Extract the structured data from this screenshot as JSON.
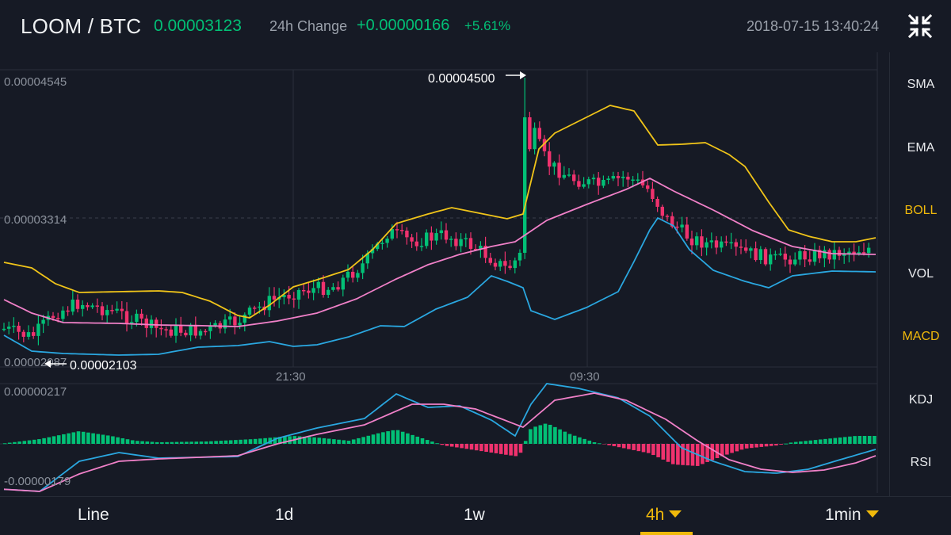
{
  "header": {
    "pair": "LOOM / BTC",
    "last_price": "0.00003123",
    "change_label": "24h Change",
    "change_abs": "+0.00000166",
    "change_pct": "+5.61%",
    "datetime": "2018-07-15 13:40:24"
  },
  "icons": {
    "collapse": "collapse-arrows-icon"
  },
  "colors": {
    "up": "#02c076",
    "down": "#f0326e",
    "boll_upper": "#f0c419",
    "boll_mid": "#f080c8",
    "boll_lower": "#2aa7e0",
    "dif": "#2aa7e0",
    "dea": "#f080c8",
    "accent": "#f0b90b"
  },
  "chart": {
    "price_high_label": "0.00004545",
    "price_mid_label": "0.00003314",
    "price_low_label": "0.00002087",
    "max_marker": "0.00004500",
    "min_marker": "0.00002103",
    "time_labels": [
      "21:30",
      "09:30"
    ],
    "macd_high_label": "0.00000217",
    "macd_low_label": "-0.00000179"
  },
  "indicators": [
    {
      "label": "SMA",
      "active": false
    },
    {
      "label": "EMA",
      "active": false
    },
    {
      "label": "BOLL",
      "active": true
    },
    {
      "label": "VOL",
      "active": false
    },
    {
      "label": "MACD",
      "active": true
    },
    {
      "label": "KDJ",
      "active": false
    },
    {
      "label": "RSI",
      "active": false
    }
  ],
  "timeframes": [
    {
      "label": "Line",
      "active": false,
      "dropdown": false
    },
    {
      "label": "1d",
      "active": false,
      "dropdown": false
    },
    {
      "label": "1w",
      "active": false,
      "dropdown": false
    },
    {
      "label": "4h",
      "active": true,
      "dropdown": true
    },
    {
      "label": "1min",
      "active": false,
      "dropdown": true
    }
  ]
}
